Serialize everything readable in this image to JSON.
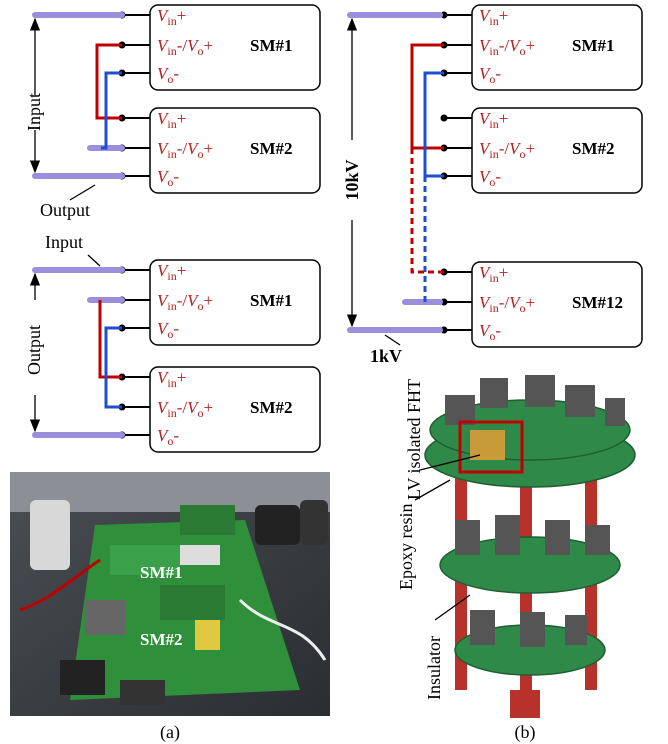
{
  "port_labels": [
    [
      {
        "v": "V",
        "sub": "in",
        "tail": "+"
      }
    ],
    [
      {
        "v": "V",
        "sub": "in",
        "tail": "-/"
      },
      {
        "v": "V",
        "sub": "o",
        "tail": "+"
      }
    ],
    [
      {
        "v": "V",
        "sub": "o",
        "tail": "-"
      }
    ]
  ],
  "diagram_a_top": {
    "modules": [
      "SM#1",
      "SM#2"
    ],
    "input_label": "Input",
    "output_label": "Output"
  },
  "diagram_a_bottom": {
    "modules": [
      "SM#1",
      "SM#2"
    ],
    "input_label": "Input",
    "output_label": "Output"
  },
  "diagram_b": {
    "modules": [
      "SM#1",
      "SM#2",
      "SM#12"
    ],
    "high_voltage": "10kV",
    "low_voltage": "1kV"
  },
  "photo_a": {
    "labels": [
      "SM#1",
      "SM#2"
    ],
    "caption": "(a)"
  },
  "photo_b": {
    "labels": [
      "LV isolated FHT",
      "Epoxy resin",
      "Insulator"
    ],
    "caption": "(b)"
  }
}
